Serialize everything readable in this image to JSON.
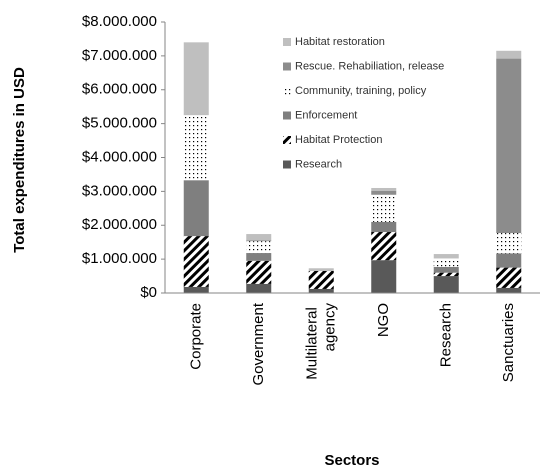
{
  "chart_data": {
    "type": "stacked_bar",
    "ylabel": "Total expenditures in USD",
    "xlabel": "Sectors",
    "categories": [
      "Corporate",
      "Government",
      "Multilateral agency",
      "NGO",
      "Research",
      "Sanctuaries"
    ],
    "series": [
      {
        "name": "Research",
        "color": "#595959",
        "values": [
          180000,
          270000,
          120000,
          970000,
          500000,
          150000
        ]
      },
      {
        "name": "Habitat Protection",
        "color": "#000000",
        "pattern": "hatch",
        "values": [
          1500000,
          680000,
          530000,
          830000,
          100000,
          600000
        ]
      },
      {
        "name": "Enforcement",
        "color": "#7f7f7f",
        "values": [
          1650000,
          230000,
          0,
          300000,
          170000,
          420000
        ]
      },
      {
        "name": "Community, training, policy",
        "color": "#000000",
        "pattern": "dots",
        "values": [
          1920000,
          350000,
          0,
          800000,
          250000,
          600000
        ]
      },
      {
        "name": "Rescue. Rehabiliation, release",
        "color": "#8c8c8c",
        "values": [
          0,
          20000,
          0,
          120000,
          0,
          5150000
        ]
      },
      {
        "name": "Habitat restoration",
        "color": "#bfbfbf",
        "values": [
          2150000,
          190000,
          80000,
          80000,
          130000,
          230000
        ]
      }
    ],
    "ylim": [
      0,
      8000000
    ],
    "yticks": [
      {
        "value": 0,
        "label": "$0"
      },
      {
        "value": 1000000,
        "label": "$1.000.000"
      },
      {
        "value": 2000000,
        "label": "$2.000.000"
      },
      {
        "value": 3000000,
        "label": "$3.000.000"
      },
      {
        "value": 4000000,
        "label": "$4.000.000"
      },
      {
        "value": 5000000,
        "label": "$5.000.000"
      },
      {
        "value": 6000000,
        "label": "$6.000.000"
      },
      {
        "value": 7000000,
        "label": "$7.000.000"
      },
      {
        "value": 8000000,
        "label": "$8.000.000"
      }
    ],
    "grid": false,
    "legend": "top-right"
  }
}
